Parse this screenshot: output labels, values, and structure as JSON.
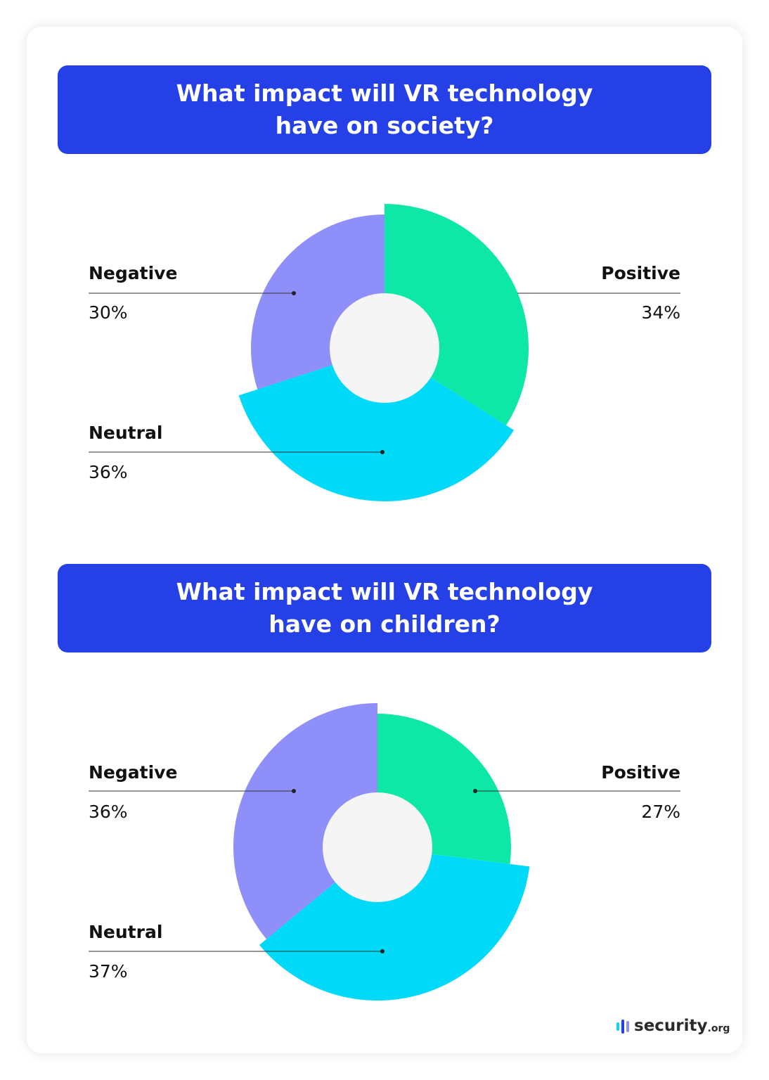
{
  "colors": {
    "banner": "#2540e6",
    "positive": "#0ee8a6",
    "neutral": "#00d9f7",
    "negative": "#8f8ffa",
    "hole": "#f5f5f5"
  },
  "chart_data": [
    {
      "type": "pie",
      "title": "What impact will VR technology\nhave on society?",
      "categories": [
        "Positive",
        "Neutral",
        "Negative"
      ],
      "values": [
        34,
        36,
        30
      ]
    },
    {
      "type": "pie",
      "title": "What impact will VR technology\nhave on children?",
      "categories": [
        "Positive",
        "Neutral",
        "Negative"
      ],
      "values": [
        27,
        37,
        36
      ]
    }
  ],
  "labels": [
    {
      "positive": "34%",
      "neutral": "36%",
      "negative": "30%"
    },
    {
      "positive": "27%",
      "neutral": "37%",
      "negative": "36%"
    }
  ],
  "logo": {
    "name": "security",
    "suffix": ".org"
  }
}
